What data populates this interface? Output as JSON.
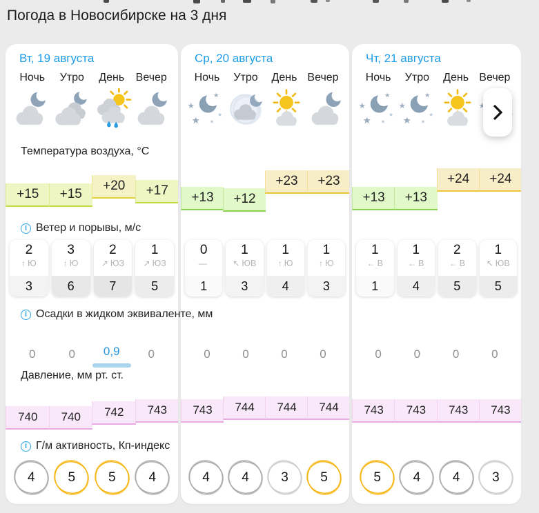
{
  "page": {
    "title": "Погода в Новосибирске на 3 дня"
  },
  "sections": {
    "temperature": {
      "label": "Температура воздуха, °C",
      "info": false
    },
    "wind": {
      "label": "Ветер и порывы, м/с",
      "info": true
    },
    "precipitation": {
      "label": "Осадки в жидком эквиваленте, мм",
      "info": true
    },
    "pressure": {
      "label": "Давление, мм рт. ст.",
      "info": false
    },
    "geomagnetic": {
      "label": "Г/м активность, Кп-индекс",
      "info": true
    }
  },
  "periods": [
    "Ночь",
    "Утро",
    "День",
    "Вечер"
  ],
  "days": [
    {
      "title": "Вт, 19 августа",
      "icons": [
        "cloud-moon",
        "clouds-moon",
        "sun-cloud-rain",
        "cloud-moon"
      ],
      "temp_labels": [
        "+15",
        "+15",
        "+20",
        "+17"
      ],
      "wind": [
        {
          "speed": "2",
          "arrow": "↑",
          "dir": "Ю",
          "gust": "3"
        },
        {
          "speed": "3",
          "arrow": "↑",
          "dir": "Ю",
          "gust": "6"
        },
        {
          "speed": "2",
          "arrow": "↗",
          "dir": "ЮЗ",
          "gust": "7"
        },
        {
          "speed": "1",
          "arrow": "↗",
          "dir": "ЮЗ",
          "gust": "5"
        }
      ],
      "precip": [
        "0",
        "0",
        "0,9",
        "0"
      ],
      "pressure_labels": [
        "740",
        "740",
        "742",
        "743"
      ],
      "kp": [
        4,
        5,
        5,
        4
      ]
    },
    {
      "title": "Ср, 20 августа",
      "icons": [
        "moon-stars",
        "fog-moon",
        "sun-cloud",
        "cloud-moon"
      ],
      "temp_labels": [
        "+13",
        "+12",
        "+23",
        "+23"
      ],
      "wind": [
        {
          "speed": "0",
          "arrow": "—",
          "dir": "",
          "gust": "1"
        },
        {
          "speed": "1",
          "arrow": "↖",
          "dir": "ЮВ",
          "gust": "3"
        },
        {
          "speed": "1",
          "arrow": "↑",
          "dir": "Ю",
          "gust": "4"
        },
        {
          "speed": "1",
          "arrow": "↑",
          "dir": "Ю",
          "gust": "3"
        }
      ],
      "precip": [
        "0",
        "0",
        "0",
        "0"
      ],
      "pressure_labels": [
        "743",
        "744",
        "744",
        "744"
      ],
      "kp": [
        4,
        4,
        3,
        5
      ]
    },
    {
      "title": "Чт, 21 августа",
      "icons": [
        "moon-stars",
        "moon-stars",
        "sun-cloud",
        "moon-stars"
      ],
      "temp_labels": [
        "+13",
        "+13",
        "+24",
        "+24"
      ],
      "wind": [
        {
          "speed": "1",
          "arrow": "←",
          "dir": "В",
          "gust": "1"
        },
        {
          "speed": "1",
          "arrow": "←",
          "dir": "В",
          "gust": "4"
        },
        {
          "speed": "2",
          "arrow": "←",
          "dir": "В",
          "gust": "5"
        },
        {
          "speed": "1",
          "arrow": "↖",
          "dir": "ЮВ",
          "gust": "5"
        }
      ],
      "precip": [
        "0",
        "0",
        "0",
        "0"
      ],
      "pressure_labels": [
        "743",
        "743",
        "743",
        "743"
      ],
      "kp": [
        5,
        4,
        4,
        3
      ]
    }
  ],
  "colors": {
    "page_background": "#ebebeb",
    "card_background": "#ffffff",
    "day_title": "#1b9de8",
    "temp_palette": {
      "cool": {
        "fill": "#e1f8c9",
        "border": "#8ad24d"
      },
      "mild": {
        "fill": "#eef6c4",
        "border": "#c0da41"
      },
      "warm": {
        "fill": "#f5f2c5",
        "border": "#ddd034"
      },
      "hot": {
        "fill": "#f7edc6",
        "border": "#edc43a"
      }
    },
    "pressure_band": {
      "fill": "#f8e8f9",
      "border": "#e9a9e2"
    },
    "kp_levels": {
      "low": "#cccccc",
      "mid": "#a9a9a9",
      "high": "#f5b40e"
    },
    "precip_highlight": {
      "text": "#2795dc",
      "bar": "#a9d4ee"
    },
    "info_icon": "#29a3ea"
  },
  "next_button": {
    "chevron": "›"
  }
}
